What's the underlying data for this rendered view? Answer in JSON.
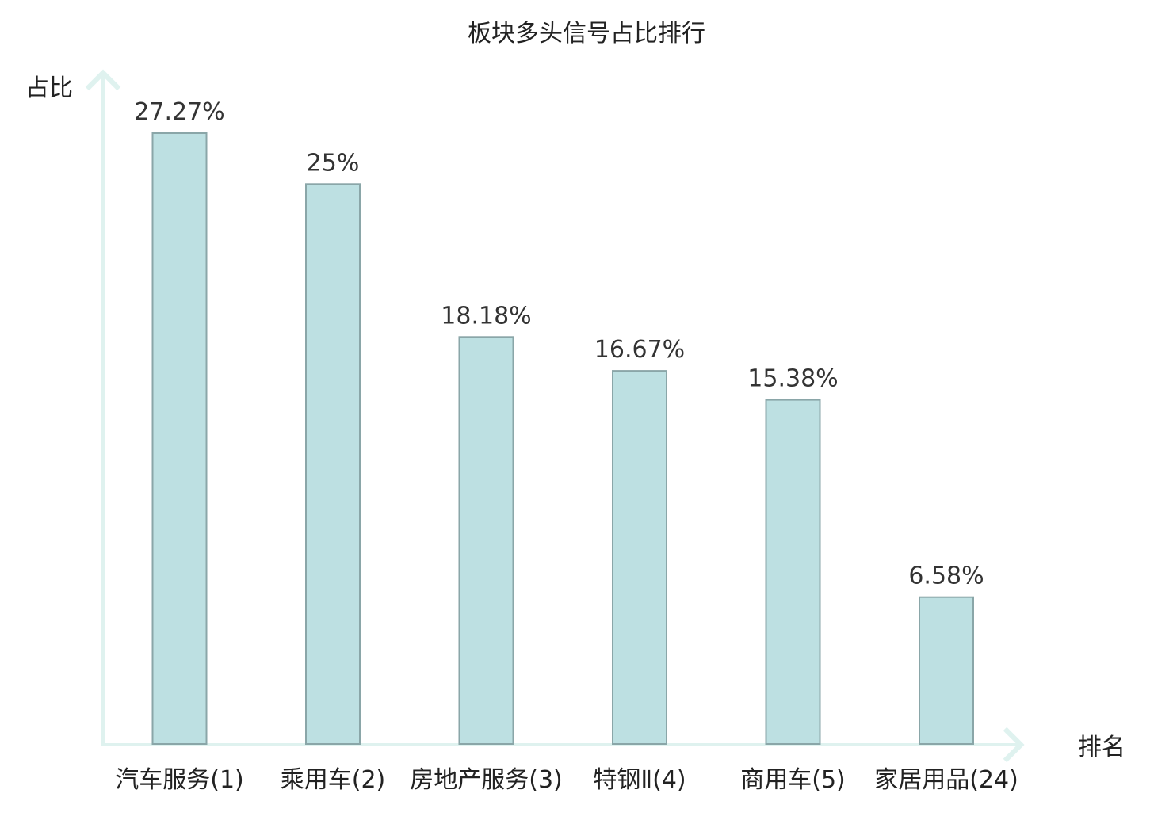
{
  "chart_data": {
    "type": "bar",
    "title": "板块多头信号占比排行",
    "ylabel": "占比",
    "xlabel": "排名",
    "categories": [
      "汽车服务(1)",
      "乘用车(2)",
      "房地产服务(3)",
      "特钢Ⅱ(4)",
      "商用车(5)",
      "家居用品(24)"
    ],
    "values": [
      27.27,
      25,
      18.18,
      16.67,
      15.38,
      6.58
    ],
    "value_labels": [
      "27.27%",
      "25%",
      "18.18%",
      "16.67%",
      "15.38%",
      "6.58%"
    ],
    "highlight_category": "家居用品(24)",
    "ylim": [
      0,
      27.27
    ],
    "grid": false,
    "legend": "none"
  },
  "colors": {
    "bar_fill": "#bde0e2",
    "bar_stroke": "#8aa6a8",
    "axis": "#dff2ef",
    "highlight_text": "#e0201f",
    "text": "#222222"
  }
}
